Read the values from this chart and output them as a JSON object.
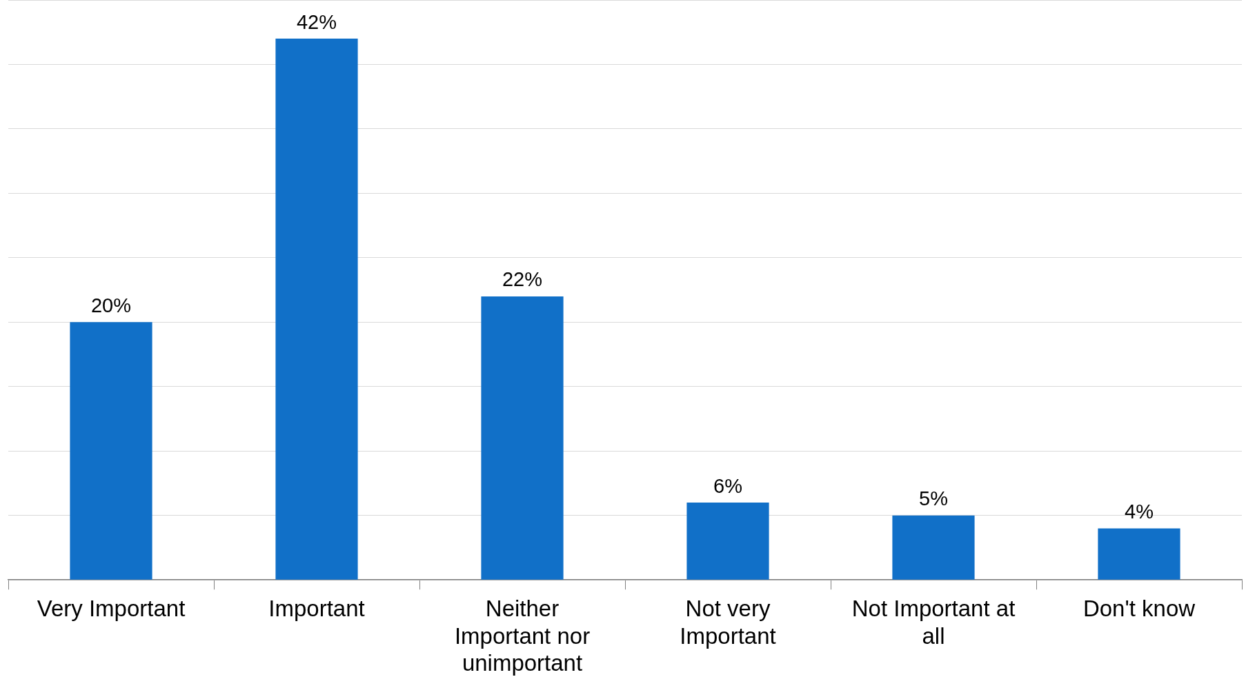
{
  "chart_data": {
    "type": "bar",
    "categories": [
      "Very Important",
      "Important",
      "Neither Important nor unimportant",
      "Not very Important",
      "Not Important at all",
      "Don't know"
    ],
    "values": [
      20,
      42,
      22,
      6,
      5,
      4
    ],
    "color": "#1170c8",
    "value_labels": [
      "20%",
      "42%",
      "22%",
      "6%",
      "5%",
      "4%"
    ],
    "grid": "y",
    "tick_labels": "x"
  }
}
